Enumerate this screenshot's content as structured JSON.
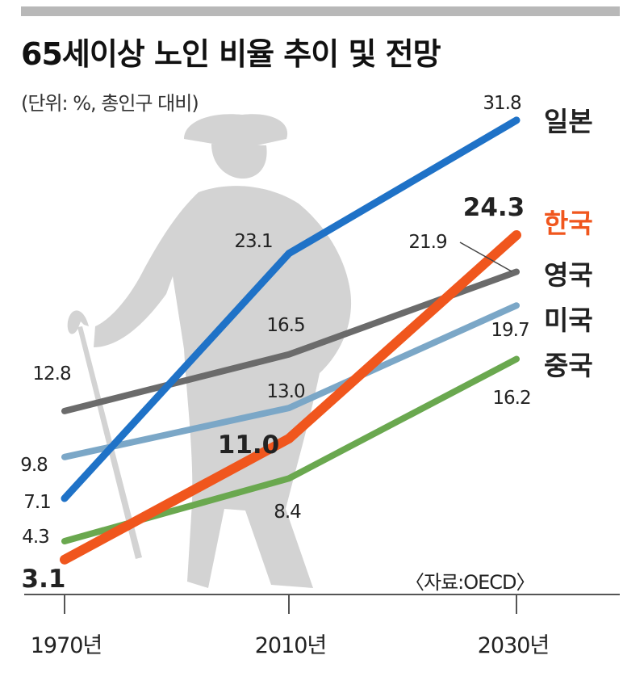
{
  "header": {
    "title": "65세이상 노인 비율 추이 및 전망",
    "unit": "(단위: %, 총인구 대비)",
    "source": "〈자료:OECD〉"
  },
  "colors": {
    "japan": "#1f72c7",
    "korea": "#f0561d",
    "uk": "#6b6b6b",
    "usa": "#7ba7c7",
    "china": "#6aa84f",
    "silhouette": "#d3d3d3"
  },
  "chart_data": {
    "type": "line",
    "title": "65세이상 노인 비율 추이 및 전망",
    "x": [
      "1970년",
      "2010년",
      "2030년"
    ],
    "ylabel": "%",
    "grid": false,
    "legend": "right",
    "series": [
      {
        "name": "일본",
        "key": "japan",
        "values": [
          7.1,
          23.1,
          31.8
        ],
        "labels": [
          "7.1",
          "23.1",
          "31.8"
        ]
      },
      {
        "name": "한국",
        "key": "korea",
        "values": [
          3.1,
          11.0,
          24.3
        ],
        "labels": [
          "3.1",
          "11.0",
          "24.3"
        ]
      },
      {
        "name": "영국",
        "key": "uk",
        "values": [
          12.8,
          16.5,
          21.9
        ],
        "labels": [
          "12.8",
          "16.5",
          "21.9"
        ]
      },
      {
        "name": "미국",
        "key": "usa",
        "values": [
          9.8,
          13.0,
          19.7
        ],
        "labels": [
          "9.8",
          "13.0",
          "19.7"
        ]
      },
      {
        "name": "중국",
        "key": "china",
        "values": [
          4.3,
          8.4,
          16.2
        ],
        "labels": [
          "4.3",
          "8.4",
          "16.2"
        ]
      }
    ]
  }
}
